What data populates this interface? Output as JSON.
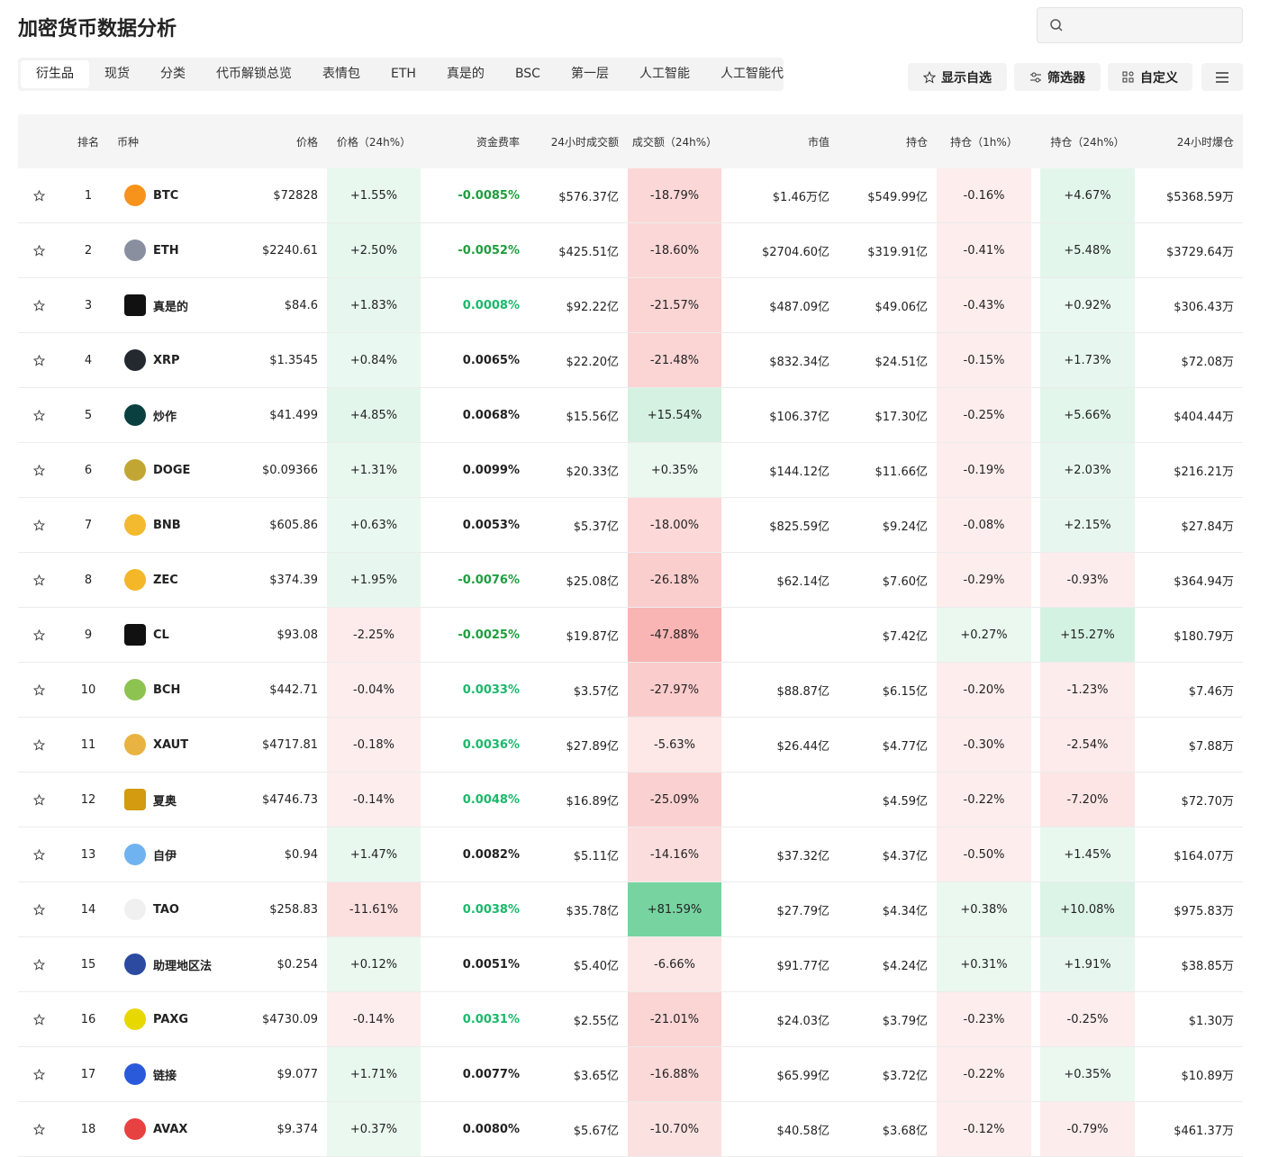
{
  "header": {
    "title": "加密货币数据分析"
  },
  "tabs": [
    "衍生品",
    "现货",
    "分类",
    "代币解锁总览",
    "表情包",
    "ETH",
    "真是的",
    "BSC",
    "第一层",
    "人工智能",
    "人工智能代"
  ],
  "buttons": [
    "显示自选",
    "筛选器",
    "自定义"
  ],
  "table": {
    "headers": [
      "排名",
      "币种",
      "价格",
      "价格（24h%）",
      "资金费率",
      "24小时成交额",
      "成交额（24h%）",
      "市值",
      "持仓",
      "持仓（1h%）",
      "持仓（24h%）",
      "24小时爆仓"
    ],
    "rows": [
      {
        "cells": [
          1,
          "BTC",
          "$72828",
          "+1.55%",
          "-0.0085%",
          "$576.37亿",
          "-18.79%",
          "$1.46万亿",
          "$549.99亿",
          "-0.16%",
          "+4.67%",
          "$5368.59万"
        ],
        "icon_color": "#f7931a",
        "funding_color": "#1f9d3f"
      },
      {
        "cells": [
          2,
          "ETH",
          "$2240.61",
          "+2.50%",
          "-0.0052%",
          "$425.51亿",
          "-18.60%",
          "$2704.60亿",
          "$319.91亿",
          "-0.41%",
          "+5.48%",
          "$3729.64万"
        ],
        "icon_color": "#8a8fa0",
        "funding_color": "#1f9d3f"
      },
      {
        "cells": [
          3,
          "真是的",
          "$84.6",
          "+1.83%",
          "0.0008%",
          "$92.22亿",
          "-21.57%",
          "$487.09亿",
          "$49.06亿",
          "-0.43%",
          "+0.92%",
          "$306.43万"
        ],
        "icon_color": "#111111",
        "funding_color": "#1bb86b"
      },
      {
        "cells": [
          4,
          "XRP",
          "$1.3545",
          "+0.84%",
          "0.0065%",
          "$22.20亿",
          "-21.48%",
          "$832.34亿",
          "$24.51亿",
          "-0.15%",
          "+1.73%",
          "$72.08万"
        ],
        "icon_color": "#23292f",
        "funding_color": "#222222"
      },
      {
        "cells": [
          5,
          "炒作",
          "$41.499",
          "+4.85%",
          "0.0068%",
          "$15.56亿",
          "+15.54%",
          "$106.37亿",
          "$17.30亿",
          "-0.25%",
          "+5.66%",
          "$404.44万"
        ],
        "icon_color": "#0b4040",
        "funding_color": "#222222"
      },
      {
        "cells": [
          6,
          "DOGE",
          "$0.09366",
          "+1.31%",
          "0.0099%",
          "$20.33亿",
          "+0.35%",
          "$144.12亿",
          "$11.66亿",
          "-0.19%",
          "+2.03%",
          "$216.21万"
        ],
        "icon_color": "#c2a633",
        "funding_color": "#222222"
      },
      {
        "cells": [
          7,
          "BNB",
          "$605.86",
          "+0.63%",
          "0.0053%",
          "$5.37亿",
          "-18.00%",
          "$825.59亿",
          "$9.24亿",
          "-0.08%",
          "+2.15%",
          "$27.84万"
        ],
        "icon_color": "#f3ba2f",
        "funding_color": "#222222"
      },
      {
        "cells": [
          8,
          "ZEC",
          "$374.39",
          "+1.95%",
          "-0.0076%",
          "$25.08亿",
          "-26.18%",
          "$62.14亿",
          "$7.60亿",
          "-0.29%",
          "-0.93%",
          "$364.94万"
        ],
        "icon_color": "#f4b728",
        "funding_color": "#1f9d3f"
      },
      {
        "cells": [
          9,
          "CL",
          "$93.08",
          "-2.25%",
          "-0.0025%",
          "$19.87亿",
          "-47.88%",
          null,
          "$7.42亿",
          "+0.27%",
          "+15.27%",
          "$180.79万"
        ],
        "icon_color": "#111111",
        "funding_color": "#1f9d3f"
      },
      {
        "cells": [
          10,
          "BCH",
          "$442.71",
          "-0.04%",
          "0.0033%",
          "$3.57亿",
          "-27.97%",
          "$88.87亿",
          "$6.15亿",
          "-0.20%",
          "-1.23%",
          "$7.46万"
        ],
        "icon_color": "#8dc351",
        "funding_color": "#1bb86b"
      },
      {
        "cells": [
          11,
          "XAUT",
          "$4717.81",
          "-0.18%",
          "0.0036%",
          "$27.89亿",
          "-5.63%",
          "$26.44亿",
          "$4.77亿",
          "-0.30%",
          "-2.54%",
          "$7.88万"
        ],
        "icon_color": "#e8b341",
        "funding_color": "#1bb86b"
      },
      {
        "cells": [
          12,
          "夏奥",
          "$4746.73",
          "-0.14%",
          "0.0048%",
          "$16.89亿",
          "-25.09%",
          null,
          "$4.59亿",
          "-0.22%",
          "-7.20%",
          "$72.70万"
        ],
        "icon_color": "#d49a10",
        "funding_color": "#1bb86b"
      },
      {
        "cells": [
          13,
          "自伊",
          "$0.94",
          "+1.47%",
          "0.0082%",
          "$5.11亿",
          "-14.16%",
          "$37.32亿",
          "$4.37亿",
          "-0.50%",
          "+1.45%",
          "$164.07万"
        ],
        "icon_color": "#6fb3f0",
        "funding_color": "#222222"
      },
      {
        "cells": [
          14,
          "TAO",
          "$258.83",
          "-11.61%",
          "0.0038%",
          "$35.78亿",
          "+81.59%",
          "$27.79亿",
          "$4.34亿",
          "+0.38%",
          "+10.08%",
          "$975.83万"
        ],
        "icon_color": "#f0f0f0",
        "funding_color": "#1bb86b"
      },
      {
        "cells": [
          15,
          "助理地区法",
          "$0.254",
          "+0.12%",
          "0.0051%",
          "$5.40亿",
          "-6.66%",
          "$91.77亿",
          "$4.24亿",
          "+0.31%",
          "+1.91%",
          "$38.85万"
        ],
        "icon_color": "#2b4aa0",
        "funding_color": "#222222"
      },
      {
        "cells": [
          16,
          "PAXG",
          "$4730.09",
          "-0.14%",
          "0.0031%",
          "$2.55亿",
          "-21.01%",
          "$24.03亿",
          "$3.79亿",
          "-0.23%",
          "-0.25%",
          "$1.30万"
        ],
        "icon_color": "#e6d800",
        "funding_color": "#1bb86b"
      },
      {
        "cells": [
          17,
          "链接",
          "$9.077",
          "+1.71%",
          "0.0077%",
          "$3.65亿",
          "-16.88%",
          "$65.99亿",
          "$3.72亿",
          "-0.22%",
          "+0.35%",
          "$10.89万"
        ],
        "icon_color": "#2a5ada",
        "funding_color": "#222222"
      },
      {
        "cells": [
          18,
          "AVAX",
          "$9.374",
          "+0.37%",
          "0.0080%",
          "$5.67亿",
          "-10.70%",
          "$40.58亿",
          "$3.68亿",
          "-0.12%",
          "-0.79%",
          "$461.37万"
        ],
        "icon_color": "#e84142",
        "funding_color": "#222222"
      }
    ]
  }
}
